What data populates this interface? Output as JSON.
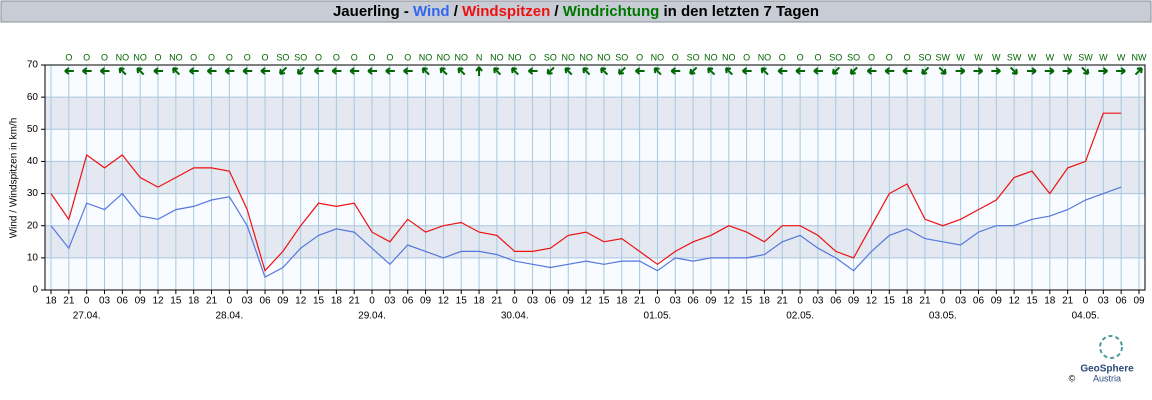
{
  "chart_data": {
    "type": "line",
    "title_parts": [
      {
        "text": "Jauerling - ",
        "color": "#000000"
      },
      {
        "text": "Wind",
        "color": "#3366ee"
      },
      {
        "text": " / ",
        "color": "#000000"
      },
      {
        "text": "Windspitzen",
        "color": "#ee1111"
      },
      {
        "text": " / ",
        "color": "#000000"
      },
      {
        "text": "Windrichtung",
        "color": "#007700"
      },
      {
        "text": " in den letzten 7 Tagen",
        "color": "#000000"
      }
    ],
    "y_label": "Wind / Windspitzen in km/h",
    "categories": [
      "18",
      "21",
      "0",
      "03",
      "06",
      "09",
      "12",
      "15",
      "18",
      "21",
      "0",
      "03",
      "06",
      "09",
      "12",
      "15",
      "18",
      "21",
      "0",
      "03",
      "06",
      "09",
      "12",
      "15",
      "18",
      "21",
      "0",
      "03",
      "06",
      "09",
      "12",
      "15",
      "18",
      "21",
      "0",
      "03",
      "06",
      "09",
      "12",
      "15",
      "18",
      "21",
      "0",
      "03",
      "06",
      "09",
      "12",
      "15",
      "18",
      "21",
      "0",
      "03",
      "06",
      "09",
      "12",
      "15",
      "18",
      "21",
      "0",
      "03",
      "06",
      "09"
    ],
    "date_labels": [
      null,
      null,
      "27.04.",
      null,
      null,
      null,
      null,
      null,
      null,
      null,
      "28.04.",
      null,
      null,
      null,
      null,
      null,
      null,
      null,
      "29.04.",
      null,
      null,
      null,
      null,
      null,
      null,
      null,
      "30.04.",
      null,
      null,
      null,
      null,
      null,
      null,
      null,
      "01.05.",
      null,
      null,
      null,
      null,
      null,
      null,
      null,
      "02.05.",
      null,
      null,
      null,
      null,
      null,
      null,
      null,
      "03.05.",
      null,
      null,
      null,
      null,
      null,
      null,
      null,
      "04.05.",
      null,
      null,
      null
    ],
    "directions": [
      null,
      "O",
      "O",
      "O",
      "NO",
      "NO",
      "O",
      "NO",
      "O",
      "O",
      "O",
      "O",
      "O",
      "SO",
      "SO",
      "O",
      "O",
      "O",
      "O",
      "O",
      "O",
      "NO",
      "NO",
      "NO",
      "N",
      "NO",
      "NO",
      "O",
      "SO",
      "NO",
      "NO",
      "NO",
      "SO",
      "O",
      "NO",
      "O",
      "SO",
      "NO",
      "NO",
      "O",
      "NO",
      "O",
      "O",
      "O",
      "SO",
      "SO",
      "O",
      "O",
      "O",
      "SO",
      "SW",
      "W",
      "W",
      "W",
      "SW",
      "W",
      "W",
      "W",
      "SW",
      "W",
      "W",
      "NW"
    ],
    "direction_color": "#006600",
    "series": [
      {
        "name": "Windspitzen",
        "color": "#ee1111",
        "values": [
          30,
          22,
          42,
          38,
          42,
          35,
          32,
          35,
          38,
          38,
          37,
          25,
          6,
          12,
          20,
          27,
          26,
          27,
          18,
          15,
          22,
          18,
          20,
          21,
          18,
          17,
          12,
          12,
          13,
          17,
          18,
          15,
          16,
          12,
          8,
          12,
          15,
          17,
          20,
          18,
          15,
          20,
          20,
          17,
          12,
          10,
          20,
          30,
          33,
          22,
          20,
          22,
          25,
          28,
          35,
          37,
          30,
          38,
          40,
          55,
          55,
          null
        ]
      },
      {
        "name": "Wind",
        "color": "#5577dd",
        "values": [
          20,
          13,
          27,
          25,
          30,
          23,
          22,
          25,
          26,
          28,
          29,
          20,
          4,
          7,
          13,
          17,
          19,
          18,
          13,
          8,
          14,
          12,
          10,
          12,
          12,
          11,
          9,
          8,
          7,
          8,
          9,
          8,
          9,
          9,
          6,
          10,
          9,
          10,
          10,
          10,
          11,
          15,
          17,
          13,
          10,
          6,
          12,
          17,
          19,
          16,
          15,
          14,
          18,
          20,
          20,
          22,
          23,
          25,
          28,
          30,
          32,
          null
        ]
      }
    ],
    "ylim": [
      0,
      70
    ],
    "yticks": [
      0,
      10,
      20,
      30,
      40,
      50,
      60,
      70
    ],
    "grid": true,
    "logo": {
      "name": "GeoSphere",
      "copyright": "©",
      "sub": "Austria"
    }
  }
}
